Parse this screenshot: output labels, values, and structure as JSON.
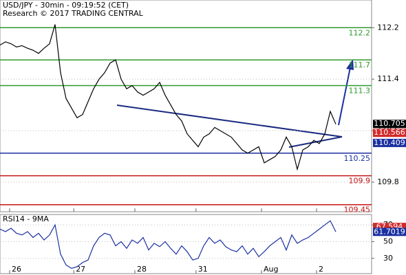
{
  "chart_data": [
    {
      "type": "line",
      "title": "USD/JPY - 30min - 09:19:52 (CET)",
      "subtitle": "Research © 2017 TRADING CENTRAL",
      "series": [
        {
          "color": "#000000",
          "values": [
            111.93,
            111.98,
            111.95,
            111.9,
            111.92,
            111.88,
            111.85,
            111.8,
            111.88,
            111.95,
            112.25,
            111.5,
            111.1,
            110.95,
            110.8,
            110.85,
            111.05,
            111.25,
            111.4,
            111.5,
            111.65,
            111.7,
            111.4,
            111.25,
            111.3,
            111.2,
            111.15,
            111.2,
            111.25,
            111.35,
            111.15,
            111.0,
            110.85,
            110.75,
            110.55,
            110.45,
            110.35,
            110.5,
            110.55,
            110.65,
            110.6,
            110.55,
            110.5,
            110.4,
            110.3,
            110.25,
            110.3,
            110.35,
            110.1,
            110.15,
            110.2,
            110.3,
            110.5,
            110.35,
            110.0,
            110.3,
            110.35,
            110.45,
            110.4,
            110.55,
            110.9,
            110.7
          ]
        }
      ],
      "xlim": [
        0,
        67.5
      ],
      "ylim": [
        109.34,
        112.63
      ],
      "yticks": [
        112.2,
        111.4,
        110.6,
        109.8
      ],
      "grid": true,
      "levels": [
        {
          "value": 112.2,
          "color": "#2e9a2e"
        },
        {
          "value": 111.7,
          "color": "#2e9a2e"
        },
        {
          "value": 111.3,
          "color": "#2e9a2e"
        },
        {
          "value": 110.25,
          "color": "#1a2fa0"
        },
        {
          "value": 109.9,
          "color": "#c41414"
        },
        {
          "value": 109.45,
          "color": "#c41414"
        }
      ],
      "price_tags": [
        {
          "value": 110.705,
          "color": "#000000"
        },
        {
          "value": 110.566,
          "color": "#d12a2a"
        },
        {
          "value": 110.409,
          "color": "#1a2fa0"
        }
      ]
    },
    {
      "type": "line",
      "title": "RSI14 - 9MA",
      "series": [
        {
          "color": "#1a2fa0",
          "values": [
            65,
            62,
            66,
            60,
            58,
            62,
            55,
            60,
            52,
            58,
            70,
            35,
            22,
            18,
            20,
            25,
            28,
            45,
            55,
            60,
            58,
            45,
            50,
            42,
            52,
            48,
            55,
            40,
            48,
            44,
            50,
            42,
            35,
            45,
            38,
            28,
            30,
            45,
            55,
            48,
            52,
            44,
            40,
            38,
            45,
            35,
            42,
            32,
            38,
            45,
            50,
            55,
            40,
            58,
            48,
            52,
            55,
            60,
            65,
            70,
            75,
            61.7
          ]
        }
      ],
      "xlim": [
        0,
        67.5
      ],
      "ylim": [
        11.7,
        82.5
      ],
      "yticks": [
        70,
        50,
        30
      ],
      "grid": true,
      "xticks": [
        {
          "value": 1.75,
          "label": "26"
        },
        {
          "value": 13.4,
          "label": "27"
        },
        {
          "value": 24.5,
          "label": "28"
        },
        {
          "value": 35.6,
          "label": "31"
        },
        {
          "value": 47.5,
          "label": "Aug"
        },
        {
          "value": 57.5,
          "label": "2"
        }
      ],
      "price_tags": [
        {
          "value": 67.594,
          "color": "#d12a2a"
        },
        {
          "value": 61.7019,
          "color": "#1a2fa0"
        }
      ]
    }
  ]
}
